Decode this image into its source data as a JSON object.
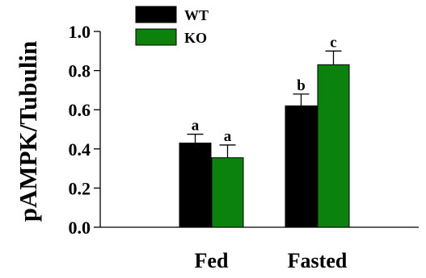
{
  "chart_data": {
    "type": "bar",
    "title": "",
    "xlabel": "",
    "ylabel": "pAMPK/Tubulin",
    "ylim": [
      0,
      1.0
    ],
    "yticks": [
      "0.0",
      "0.2",
      "0.4",
      "0.6",
      "0.8",
      "1.0"
    ],
    "grid": false,
    "legend_position": "top-left",
    "categories": [
      "Fed",
      "Fasted"
    ],
    "series": [
      {
        "name": "WT",
        "color": "#000000",
        "values": [
          0.43,
          0.62
        ],
        "errors": [
          0.045,
          0.06
        ],
        "labels": [
          "a",
          "b"
        ]
      },
      {
        "name": "KO",
        "color": "#0b820b",
        "values": [
          0.355,
          0.83
        ],
        "errors": [
          0.065,
          0.07
        ],
        "labels": [
          "a",
          "c"
        ]
      }
    ]
  }
}
